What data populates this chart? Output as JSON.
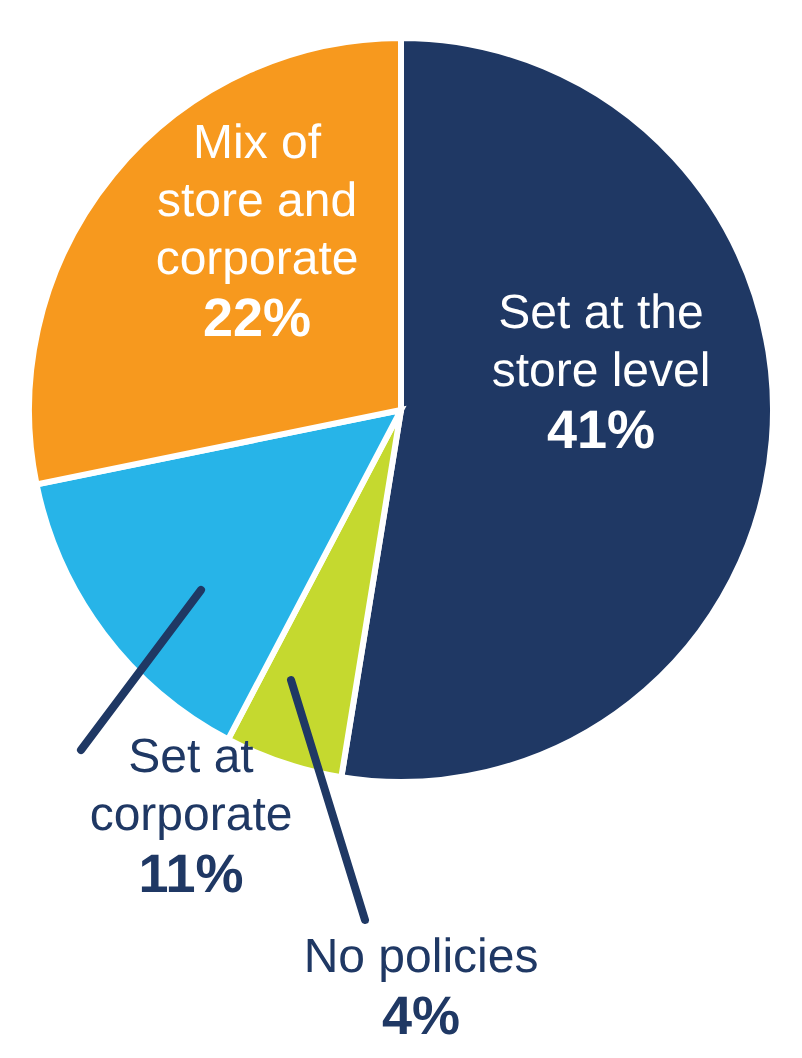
{
  "chart_data": {
    "type": "pie",
    "categories": [
      "Set at the store level",
      "No policies",
      "Set at corporate",
      "Mix of store and corporate"
    ],
    "values": [
      41,
      4,
      11,
      22
    ],
    "colors": [
      "#1f3864",
      "#c5d92f",
      "#27b4e8",
      "#f7991e"
    ],
    "value_labels": [
      "41%",
      "4%",
      "11%",
      "22%"
    ]
  }
}
